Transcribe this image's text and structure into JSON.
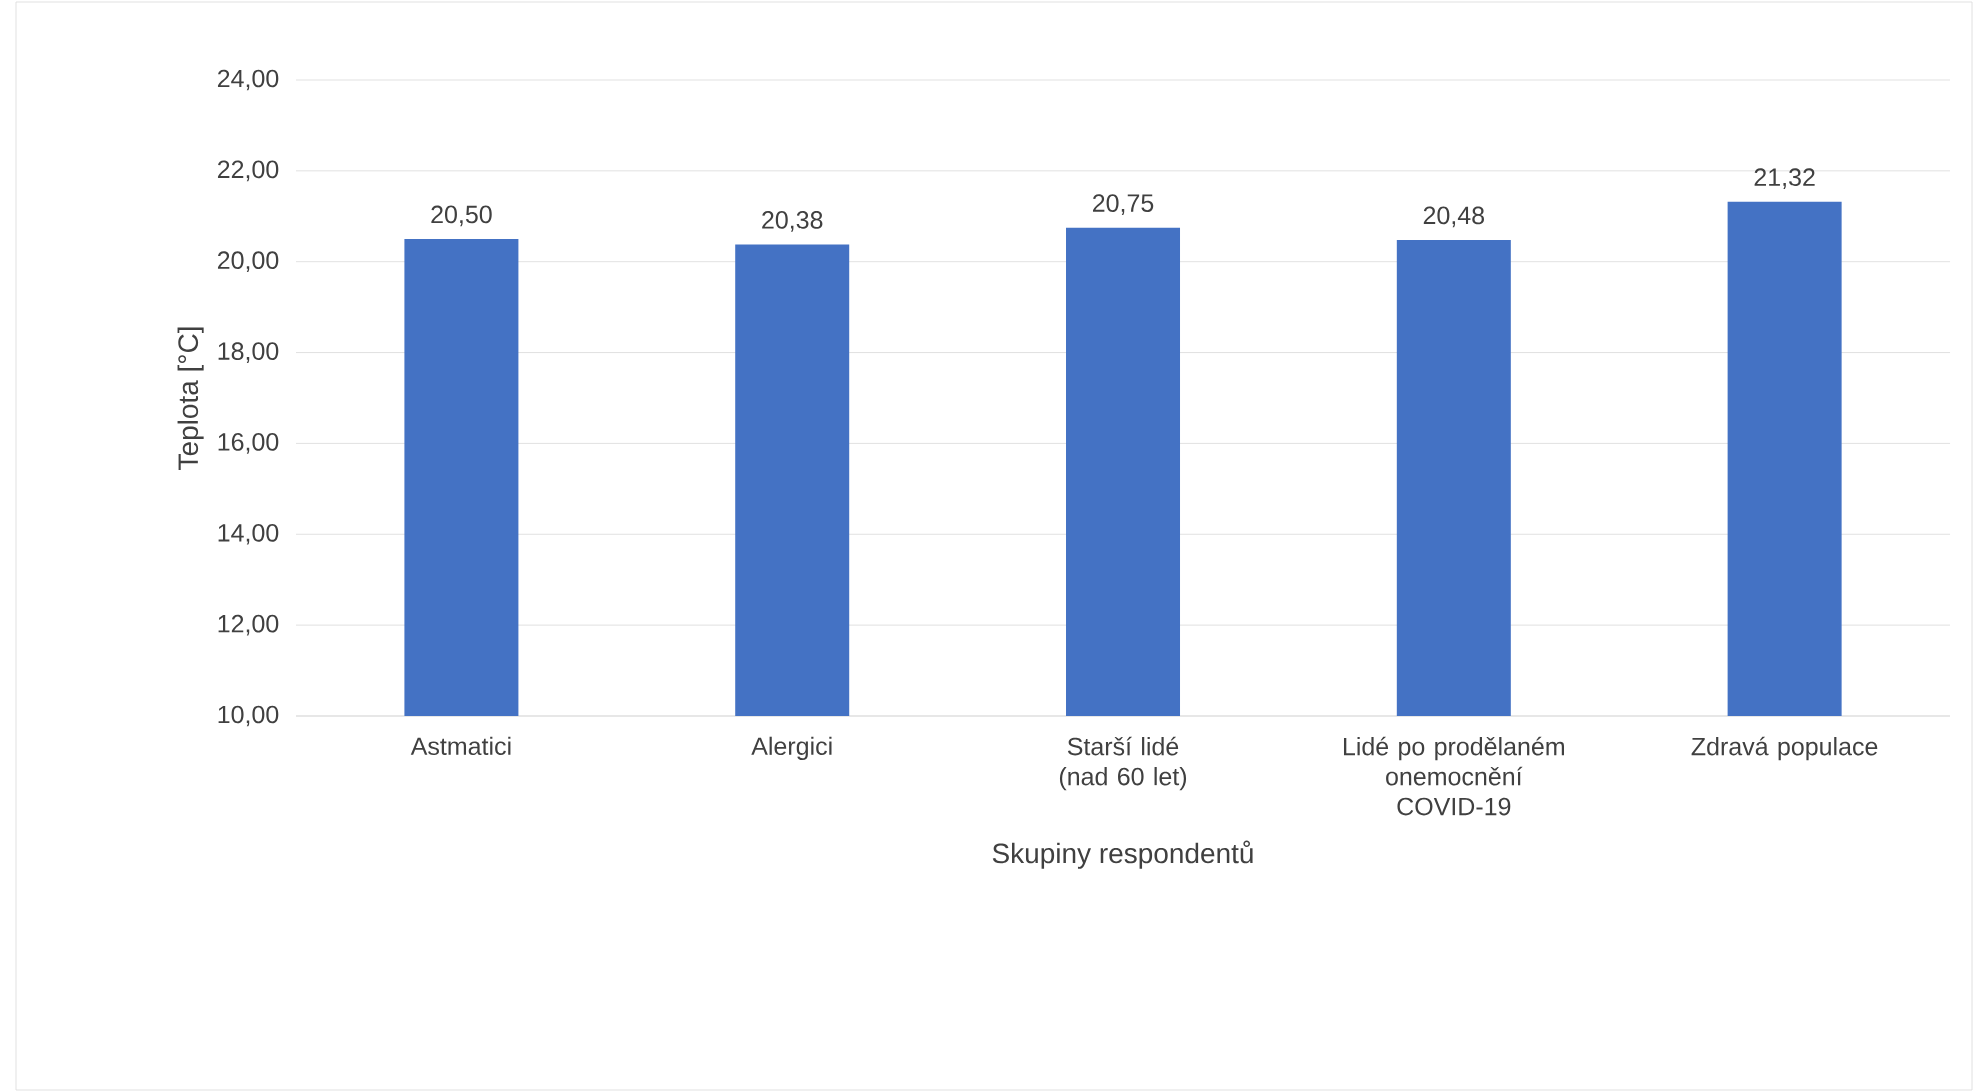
{
  "chart_data": {
    "type": "bar",
    "xlabel": "Skupiny respondentů",
    "ylabel": "Teplota [°C]",
    "categories": [
      "Astmatici",
      "Alergici",
      "Starší lidé (nad 60 let)",
      "Lidé po prodělaném onemocnění COVID-19",
      "Zdravá populace"
    ],
    "values": [
      20.5,
      20.38,
      20.75,
      20.48,
      21.32
    ],
    "value_labels": [
      "20,50",
      "20,38",
      "20,75",
      "20,48",
      "21,32"
    ],
    "color": "#4472c4",
    "ylim": [
      10,
      24
    ],
    "yticks": [
      {
        "value": 10,
        "label": "10,00"
      },
      {
        "value": 12,
        "label": "12,00"
      },
      {
        "value": 14,
        "label": "14,00"
      },
      {
        "value": 16,
        "label": "16,00"
      },
      {
        "value": 18,
        "label": "18,00"
      },
      {
        "value": 20,
        "label": "20,00"
      },
      {
        "value": 22,
        "label": "22,00"
      },
      {
        "value": 24,
        "label": "24,00"
      }
    ],
    "grid": "y"
  }
}
